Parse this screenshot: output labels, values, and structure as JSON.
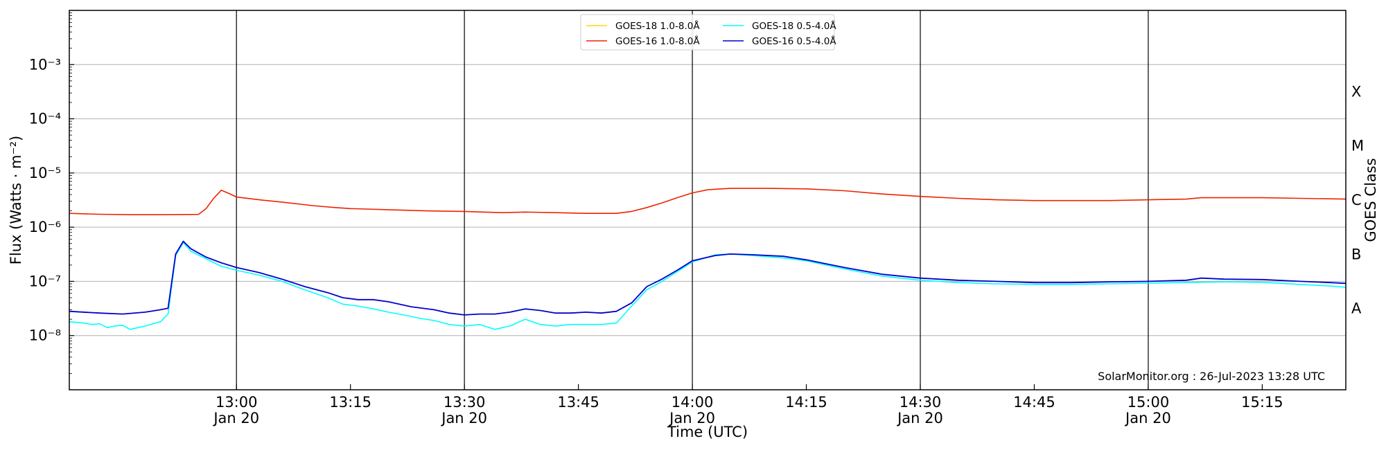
{
  "chart_data": {
    "type": "line",
    "title": "",
    "xlabel": "Time (UTC)",
    "ylabel": "Flux (Watts · m⁻²)",
    "ylabel_right": "GOES Class",
    "y_scale": "log",
    "xlim": [
      "12:38",
      "15:26"
    ],
    "ylim": [
      1e-09,
      0.01
    ],
    "grid": "horizontal",
    "legend_position": "top-center",
    "credit": "SolarMonitor.org : 26-Jul-2023 13:28 UTC",
    "x_ticks": [
      {
        "time": "13:00",
        "label": "13:00",
        "sublabel": "Jan 20",
        "vline": true
      },
      {
        "time": "13:15",
        "label": "13:15",
        "sublabel": "",
        "vline": false
      },
      {
        "time": "13:30",
        "label": "13:30",
        "sublabel": "Jan 20",
        "vline": true
      },
      {
        "time": "13:45",
        "label": "13:45",
        "sublabel": "",
        "vline": false
      },
      {
        "time": "14:00",
        "label": "14:00",
        "sublabel": "Jan 20",
        "vline": true
      },
      {
        "time": "14:15",
        "label": "14:15",
        "sublabel": "",
        "vline": false
      },
      {
        "time": "14:30",
        "label": "14:30",
        "sublabel": "Jan 20",
        "vline": true
      },
      {
        "time": "14:45",
        "label": "14:45",
        "sublabel": "",
        "vline": false
      },
      {
        "time": "15:00",
        "label": "15:00",
        "sublabel": "Jan 20",
        "vline": true
      },
      {
        "time": "15:15",
        "label": "15:15",
        "sublabel": "",
        "vline": false
      }
    ],
    "y_ticks": [
      {
        "exp": -8,
        "label": "10⁻⁸"
      },
      {
        "exp": -7,
        "label": "10⁻⁷"
      },
      {
        "exp": -6,
        "label": "10⁻⁶"
      },
      {
        "exp": -5,
        "label": "10⁻⁵"
      },
      {
        "exp": -4,
        "label": "10⁻⁴"
      },
      {
        "exp": -3,
        "label": "10⁻³"
      }
    ],
    "class_labels": [
      {
        "label": "A",
        "exp": -7.5
      },
      {
        "label": "B",
        "exp": -6.5
      },
      {
        "label": "C",
        "exp": -5.5
      },
      {
        "label": "M",
        "exp": -4.5
      },
      {
        "label": "X",
        "exp": -3.5
      }
    ],
    "series": [
      {
        "name": "GOES-18 1.0-8.0Å",
        "color": "#ffd700",
        "points": []
      },
      {
        "name": "GOES-16 1.0-8.0Å",
        "color": "#ee2200",
        "points": [
          [
            "12:38",
            1.8e-06
          ],
          [
            "12:42",
            1.73e-06
          ],
          [
            "12:46",
            1.7e-06
          ],
          [
            "12:50",
            1.7e-06
          ],
          [
            "12:55",
            1.72e-06
          ],
          [
            "12:56",
            2.2e-06
          ],
          [
            "12:57",
            3.4e-06
          ],
          [
            "12:58",
            4.8e-06
          ],
          [
            "12:59",
            4.2e-06
          ],
          [
            "13:00",
            3.6e-06
          ],
          [
            "13:03",
            3.2e-06
          ],
          [
            "13:06",
            2.9e-06
          ],
          [
            "13:10",
            2.5e-06
          ],
          [
            "13:13",
            2.3e-06
          ],
          [
            "13:15",
            2.2e-06
          ],
          [
            "13:20",
            2.1e-06
          ],
          [
            "13:25",
            2e-06
          ],
          [
            "13:30",
            1.95e-06
          ],
          [
            "13:35",
            1.85e-06
          ],
          [
            "13:38",
            1.9e-06
          ],
          [
            "13:42",
            1.85e-06
          ],
          [
            "13:46",
            1.8e-06
          ],
          [
            "13:50",
            1.8e-06
          ],
          [
            "13:52",
            1.95e-06
          ],
          [
            "13:54",
            2.3e-06
          ],
          [
            "13:56",
            2.8e-06
          ],
          [
            "13:58",
            3.5e-06
          ],
          [
            "14:00",
            4.3e-06
          ],
          [
            "14:02",
            4.9e-06
          ],
          [
            "14:05",
            5.2e-06
          ],
          [
            "14:10",
            5.2e-06
          ],
          [
            "14:15",
            5.1e-06
          ],
          [
            "14:20",
            4.7e-06
          ],
          [
            "14:25",
            4.1e-06
          ],
          [
            "14:30",
            3.7e-06
          ],
          [
            "14:35",
            3.4e-06
          ],
          [
            "14:40",
            3.2e-06
          ],
          [
            "14:45",
            3.1e-06
          ],
          [
            "14:50",
            3.1e-06
          ],
          [
            "14:55",
            3.1e-06
          ],
          [
            "15:00",
            3.2e-06
          ],
          [
            "15:05",
            3.3e-06
          ],
          [
            "15:07",
            3.5e-06
          ],
          [
            "15:10",
            3.5e-06
          ],
          [
            "15:15",
            3.5e-06
          ],
          [
            "15:20",
            3.4e-06
          ],
          [
            "15:26",
            3.3e-06
          ]
        ]
      },
      {
        "name": "GOES-18 0.5-4.0Å",
        "color": "#00ffff",
        "points": [
          [
            "12:38",
            1.8e-08
          ],
          [
            "12:40",
            1.7e-08
          ],
          [
            "12:41",
            1.6e-08
          ],
          [
            "12:42",
            1.65e-08
          ],
          [
            "12:43",
            1.4e-08
          ],
          [
            "12:44",
            1.5e-08
          ],
          [
            "12:45",
            1.55e-08
          ],
          [
            "12:46",
            1.3e-08
          ],
          [
            "12:48",
            1.5e-08
          ],
          [
            "12:50",
            1.8e-08
          ],
          [
            "12:51",
            2.5e-08
          ],
          [
            "12:52",
            3e-07
          ],
          [
            "12:53",
            5.2e-07
          ],
          [
            "12:54",
            3.6e-07
          ],
          [
            "12:56",
            2.6e-07
          ],
          [
            "12:58",
            1.9e-07
          ],
          [
            "13:00",
            1.6e-07
          ],
          [
            "13:03",
            1.3e-07
          ],
          [
            "13:06",
            1e-07
          ],
          [
            "13:09",
            7e-08
          ],
          [
            "13:12",
            5e-08
          ],
          [
            "13:14",
            3.8e-08
          ],
          [
            "13:16",
            3.5e-08
          ],
          [
            "13:18",
            3.1e-08
          ],
          [
            "13:20",
            2.7e-08
          ],
          [
            "13:22",
            2.4e-08
          ],
          [
            "13:24",
            2.1e-08
          ],
          [
            "13:26",
            1.9e-08
          ],
          [
            "13:28",
            1.6e-08
          ],
          [
            "13:30",
            1.5e-08
          ],
          [
            "13:32",
            1.6e-08
          ],
          [
            "13:34",
            1.3e-08
          ],
          [
            "13:36",
            1.5e-08
          ],
          [
            "13:38",
            2e-08
          ],
          [
            "13:40",
            1.6e-08
          ],
          [
            "13:42",
            1.5e-08
          ],
          [
            "13:44",
            1.6e-08
          ],
          [
            "13:46",
            1.6e-08
          ],
          [
            "13:48",
            1.6e-08
          ],
          [
            "13:50",
            1.7e-08
          ],
          [
            "13:52",
            3.5e-08
          ],
          [
            "13:54",
            7e-08
          ],
          [
            "13:56",
            1e-07
          ],
          [
            "13:58",
            1.5e-07
          ],
          [
            "14:00",
            2.3e-07
          ],
          [
            "14:03",
            3.1e-07
          ],
          [
            "14:05",
            3.2e-07
          ],
          [
            "14:08",
            3e-07
          ],
          [
            "14:12",
            2.7e-07
          ],
          [
            "14:15",
            2.4e-07
          ],
          [
            "14:20",
            1.7e-07
          ],
          [
            "14:25",
            1.25e-07
          ],
          [
            "14:30",
            1.05e-07
          ],
          [
            "14:35",
            9.5e-08
          ],
          [
            "14:40",
            9e-08
          ],
          [
            "14:45",
            8.8e-08
          ],
          [
            "14:50",
            8.8e-08
          ],
          [
            "14:55",
            9e-08
          ],
          [
            "15:00",
            9.3e-08
          ],
          [
            "15:05",
            9.5e-08
          ],
          [
            "15:10",
            9.8e-08
          ],
          [
            "15:15",
            9.6e-08
          ],
          [
            "15:20",
            8.8e-08
          ],
          [
            "15:24",
            8.2e-08
          ],
          [
            "15:26",
            7.8e-08
          ]
        ]
      },
      {
        "name": "GOES-16 0.5-4.0Å",
        "color": "#0000cc",
        "points": [
          [
            "12:38",
            2.8e-08
          ],
          [
            "12:42",
            2.6e-08
          ],
          [
            "12:45",
            2.5e-08
          ],
          [
            "12:48",
            2.7e-08
          ],
          [
            "12:50",
            3e-08
          ],
          [
            "12:51",
            3.2e-08
          ],
          [
            "12:52",
            3.2e-07
          ],
          [
            "12:53",
            5.5e-07
          ],
          [
            "12:54",
            4e-07
          ],
          [
            "12:56",
            2.8e-07
          ],
          [
            "12:58",
            2.2e-07
          ],
          [
            "13:00",
            1.8e-07
          ],
          [
            "13:03",
            1.45e-07
          ],
          [
            "13:06",
            1.1e-07
          ],
          [
            "13:09",
            8e-08
          ],
          [
            "13:12",
            6.2e-08
          ],
          [
            "13:14",
            5e-08
          ],
          [
            "13:16",
            4.6e-08
          ],
          [
            "13:18",
            4.6e-08
          ],
          [
            "13:20",
            4.2e-08
          ],
          [
            "13:23",
            3.4e-08
          ],
          [
            "13:26",
            3e-08
          ],
          [
            "13:28",
            2.6e-08
          ],
          [
            "13:30",
            2.4e-08
          ],
          [
            "13:32",
            2.5e-08
          ],
          [
            "13:34",
            2.5e-08
          ],
          [
            "13:36",
            2.7e-08
          ],
          [
            "13:38",
            3.1e-08
          ],
          [
            "13:40",
            2.9e-08
          ],
          [
            "13:42",
            2.6e-08
          ],
          [
            "13:44",
            2.6e-08
          ],
          [
            "13:46",
            2.7e-08
          ],
          [
            "13:48",
            2.6e-08
          ],
          [
            "13:50",
            2.8e-08
          ],
          [
            "13:52",
            4e-08
          ],
          [
            "13:54",
            8e-08
          ],
          [
            "13:56",
            1.1e-07
          ],
          [
            "13:58",
            1.6e-07
          ],
          [
            "14:00",
            2.4e-07
          ],
          [
            "14:03",
            3e-07
          ],
          [
            "14:05",
            3.2e-07
          ],
          [
            "14:08",
            3.1e-07
          ],
          [
            "14:12",
            2.9e-07
          ],
          [
            "14:15",
            2.5e-07
          ],
          [
            "14:20",
            1.8e-07
          ],
          [
            "14:25",
            1.35e-07
          ],
          [
            "14:30",
            1.15e-07
          ],
          [
            "14:35",
            1.05e-07
          ],
          [
            "14:40",
            1e-07
          ],
          [
            "14:45",
            9.5e-08
          ],
          [
            "14:50",
            9.5e-08
          ],
          [
            "14:55",
            9.8e-08
          ],
          [
            "15:00",
            1e-07
          ],
          [
            "15:05",
            1.05e-07
          ],
          [
            "15:07",
            1.15e-07
          ],
          [
            "15:10",
            1.1e-07
          ],
          [
            "15:15",
            1.08e-07
          ],
          [
            "15:20",
            1e-07
          ],
          [
            "15:24",
            9.5e-08
          ],
          [
            "15:26",
            9.2e-08
          ]
        ]
      }
    ]
  }
}
